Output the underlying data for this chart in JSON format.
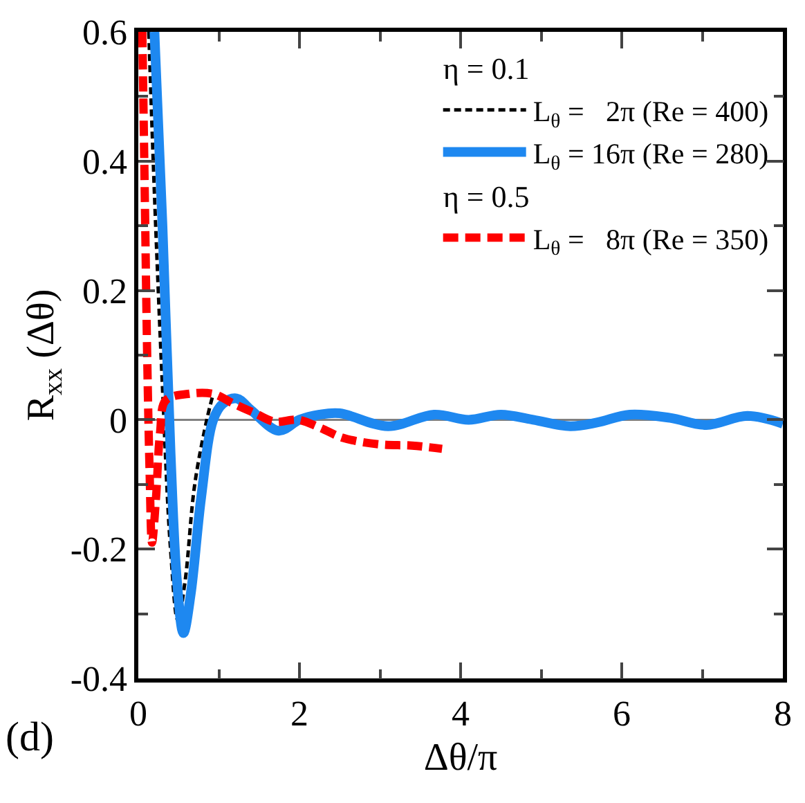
{
  "chart_data": {
    "type": "line",
    "xlabel": "Δθ/π",
    "ylabel": "R$_{xx}$ (Δθ)",
    "annotations": [
      "η = 0.1",
      "η = 0.5",
      "(d)"
    ],
    "xlim": [
      0,
      8
    ],
    "xticks": [
      0,
      2,
      4,
      6,
      8
    ],
    "ylim": [
      -0.4,
      0.6
    ],
    "yticks": [
      -0.4,
      -0.2,
      0,
      0.2,
      0.4,
      0.6
    ],
    "grid": false,
    "legend": "top right",
    "ref_lines": [
      {
        "axis": "y",
        "value": 0,
        "color": "#808080"
      }
    ],
    "series": [
      {
        "name": "L$_{θ}$ =   2π (Re = 400)",
        "color": "#000000",
        "line_style": "dashed",
        "x": [
          0.13,
          0.2,
          0.3,
          0.4,
          0.49,
          0.58,
          0.7,
          0.85,
          0.93
        ],
        "values": [
          0.6,
          0.35,
          0.05,
          -0.2,
          -0.31,
          -0.25,
          -0.1,
          0.0,
          0.04
        ]
      },
      {
        "name": "L$_{θ}$ = 16π (Re = 280)",
        "color": "#1e88f0",
        "line_style": "solid",
        "x": [
          0.2,
          0.3,
          0.4,
          0.48,
          0.56,
          0.65,
          0.78,
          0.93,
          1.05,
          1.22,
          1.4,
          1.74,
          2.0,
          2.25,
          2.5,
          3.1,
          3.67,
          4.1,
          4.5,
          4.9,
          5.36,
          5.7,
          6.1,
          6.6,
          7.05,
          7.56,
          8.0
        ],
        "values": [
          0.6,
          0.3,
          -0.05,
          -0.25,
          -0.33,
          -0.27,
          -0.12,
          0.0,
          0.025,
          0.033,
          0.015,
          -0.017,
          0.0,
          0.008,
          0.01,
          -0.01,
          0.008,
          0.0,
          0.008,
          0.0,
          -0.01,
          -0.004,
          0.008,
          0.003,
          -0.008,
          0.006,
          -0.006
        ]
      },
      {
        "name": "L$_{θ}$ =   8π (Re = 350)",
        "color": "#ff0000",
        "line_style": "dashed",
        "x": [
          0.05,
          0.08,
          0.11,
          0.14,
          0.17,
          0.22,
          0.27,
          0.34,
          0.62,
          0.93,
          1.18,
          1.45,
          1.69,
          1.98,
          2.25,
          2.54,
          2.99,
          3.4,
          3.77
        ],
        "values": [
          0.6,
          0.35,
          0.1,
          -0.08,
          -0.19,
          -0.12,
          -0.02,
          0.03,
          0.04,
          0.04,
          0.025,
          0.01,
          -0.003,
          0.0,
          -0.012,
          -0.028,
          -0.038,
          -0.04,
          -0.045
        ]
      }
    ]
  }
}
